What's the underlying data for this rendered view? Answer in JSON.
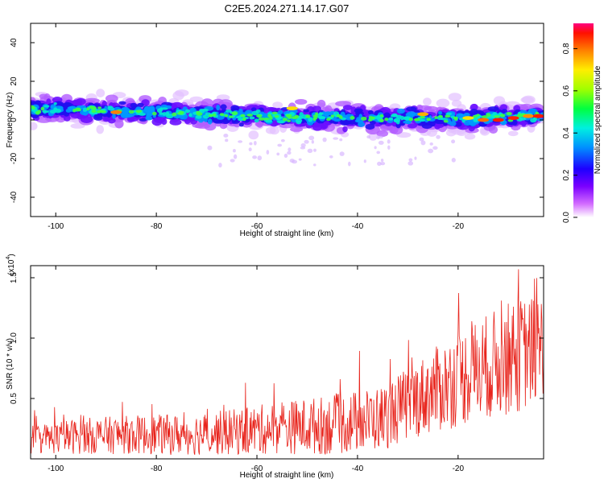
{
  "figure": {
    "title": "C2E5.2024.271.14.17.G07"
  },
  "colors": {
    "snr_line": "#e8241c",
    "axis": "#000000"
  },
  "chart_data": [
    {
      "type": "heatmap",
      "xlabel": "Height of straight line (km)",
      "ylabel": "Frequency (Hz)",
      "xlim": [
        -105,
        -3
      ],
      "ylim": [
        -50,
        50
      ],
      "xticks": [
        "-100",
        "-80",
        "-60",
        "-40",
        "-20"
      ],
      "yticks": [
        "40",
        "20",
        "0",
        "-20",
        "-40"
      ],
      "colorbar": {
        "label": "Normalized spectral amplitude",
        "range": [
          0,
          0.92
        ],
        "ticks": [
          "0.0",
          "0.2",
          "0.4",
          "0.6",
          "0.8"
        ],
        "colormap": "rainbow"
      },
      "ridge": {
        "description_points_x": [
          -105,
          -80,
          -60,
          -40,
          -20,
          -3
        ],
        "center_freq_hz": [
          6,
          4,
          2,
          1,
          1,
          2
        ]
      }
    },
    {
      "type": "line",
      "xlabel": "Height of straight line (km)",
      "ylabel": "SNR (10 * v/v)",
      "multiplier": "(x10",
      "multiplier_exp": "4",
      "multiplier_close": ")",
      "xlim": [
        -105,
        -3
      ],
      "ylim": [
        0,
        1.6
      ],
      "xticks": [
        "-100",
        "-80",
        "-60",
        "-40",
        "-20"
      ],
      "yticks": [
        "1.5",
        "1.0",
        "0.5"
      ],
      "trend_x": [
        -105,
        -95,
        -85,
        -75,
        -65,
        -55,
        -45,
        -35,
        -28,
        -22,
        -17,
        -12,
        -8,
        -5,
        -3
      ],
      "trend_mean": [
        0.16,
        0.19,
        0.2,
        0.2,
        0.22,
        0.26,
        0.28,
        0.34,
        0.5,
        0.62,
        0.72,
        0.8,
        0.86,
        0.9,
        0.95
      ],
      "trend_amp": [
        0.12,
        0.15,
        0.16,
        0.17,
        0.19,
        0.22,
        0.25,
        0.27,
        0.32,
        0.38,
        0.42,
        0.45,
        0.48,
        0.45,
        0.42
      ],
      "peak": {
        "x": -8,
        "y": 1.57
      }
    }
  ]
}
